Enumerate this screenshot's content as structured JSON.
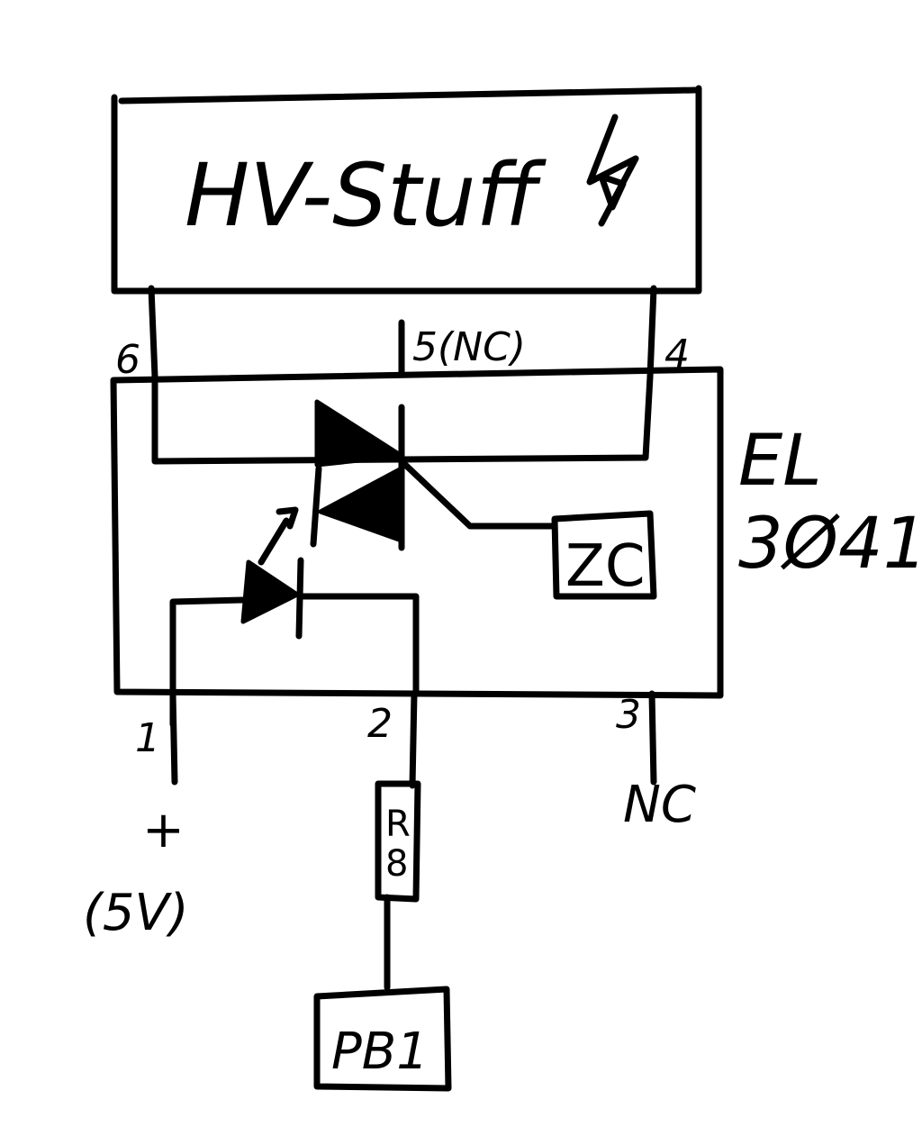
{
  "title_box": {
    "label": "HV-Stuff"
  },
  "top_pins": {
    "left": "6",
    "middle": "5(NC)",
    "right": "4"
  },
  "chip": {
    "name_line1": "EL",
    "name_line2": "3Ø41"
  },
  "inner": {
    "zero_cross": "ZC"
  },
  "bottom_pins": {
    "pin1": "1",
    "pin2": "2",
    "pin3": "3"
  },
  "supply": {
    "sign": "+",
    "voltage": "(5V)"
  },
  "nc_label": "NC",
  "resistor": {
    "line1": "R",
    "line2": "8"
  },
  "port": {
    "label": "PB1"
  }
}
